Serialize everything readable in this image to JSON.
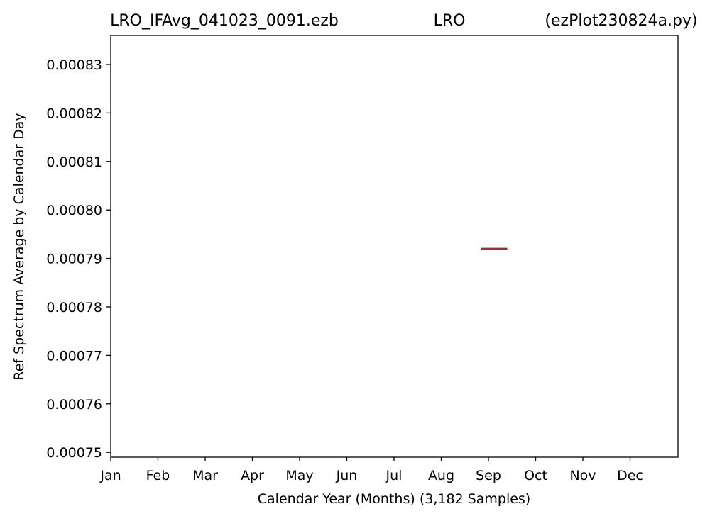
{
  "chart_data": {
    "type": "line",
    "title_left": "LRO_IFAvg_041023_0091.ezb",
    "title_center": "LRO",
    "title_right": "(ezPlot230824a.py)",
    "xlabel": "Calendar Year (Months) (3,182 Samples)",
    "ylabel": "Ref Spectrum Average by Calendar Day",
    "x_tick_labels": [
      "Jan",
      "Feb",
      "Mar",
      "Apr",
      "May",
      "Jun",
      "Jul",
      "Aug",
      "Sep",
      "Oct",
      "Nov",
      "Dec"
    ],
    "y_ticks": [
      0.00075,
      0.00076,
      0.00077,
      0.00078,
      0.00079,
      0.0008,
      0.00081,
      0.00082,
      0.00083
    ],
    "y_tick_labels": [
      "0.00075",
      "0.00076",
      "0.00077",
      "0.00078",
      "0.00079",
      "0.00080",
      "0.00081",
      "0.00082",
      "0.00083"
    ],
    "ylim": [
      0.000749,
      0.000836
    ],
    "xlim": [
      0,
      12
    ],
    "grid": false,
    "series": [
      {
        "color": "#a52a2a",
        "x": [
          7.85,
          8.4
        ],
        "y": [
          0.000792,
          0.000792
        ]
      }
    ]
  }
}
